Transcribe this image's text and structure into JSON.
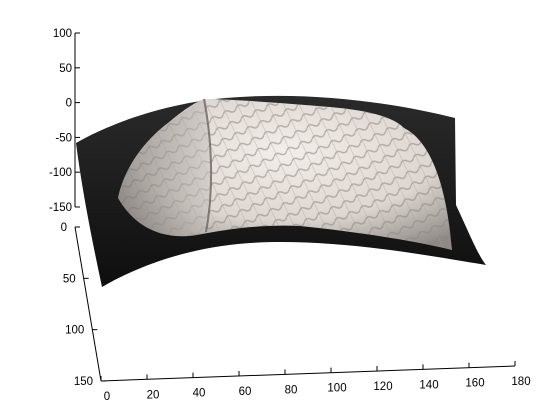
{
  "chart_data": {
    "type": "surface",
    "title": "",
    "xlabel": "",
    "ylabel": "",
    "zlabel": "",
    "colors": {
      "background": "#ffffff",
      "axis": "#000000",
      "surface_dark": "#161616",
      "surface_light": "#ece6e1",
      "surface_mid": "#9c9793"
    },
    "axes": {
      "x": {
        "range": [
          0,
          180
        ],
        "ticks": [
          "0",
          "20",
          "40",
          "60",
          "80",
          "100",
          "120",
          "140",
          "160",
          "180"
        ]
      },
      "y": {
        "range": [
          0,
          150
        ],
        "ticks": [
          "0",
          "50",
          "100",
          "150"
        ]
      },
      "z": {
        "range": [
          -150,
          100
        ],
        "ticks": [
          "100",
          "50",
          "0",
          "-50",
          "-100",
          "-150"
        ]
      }
    },
    "grid": false,
    "legend": null
  }
}
